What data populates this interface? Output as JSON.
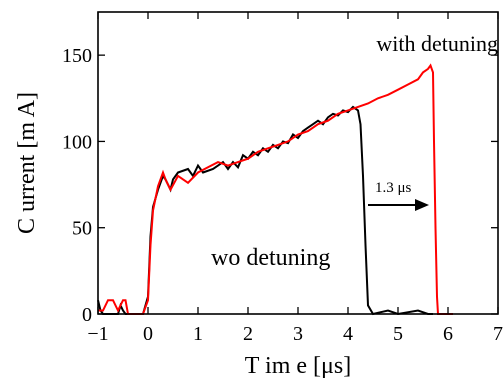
{
  "chart_data": {
    "type": "line",
    "xlabel": "T im e [μs]",
    "ylabel": "C urrent [m A]",
    "xlim": [
      -1,
      7
    ],
    "ylim": [
      0,
      175
    ],
    "x_ticks": [
      -1,
      0,
      1,
      2,
      3,
      4,
      5,
      6,
      7
    ],
    "y_ticks": [
      0,
      50,
      100,
      150
    ],
    "grid": false,
    "series": [
      {
        "name": "wo detuning",
        "color": "#000000",
        "x": [
          -1.0,
          -0.95,
          -0.9,
          -0.85,
          -0.8,
          -0.7,
          -0.6,
          -0.55,
          -0.5,
          -0.45,
          -0.4,
          -0.3,
          -0.2,
          -0.1,
          0.0,
          0.05,
          0.1,
          0.2,
          0.3,
          0.35,
          0.45,
          0.5,
          0.6,
          0.8,
          0.9,
          1.0,
          1.1,
          1.3,
          1.4,
          1.5,
          1.6,
          1.7,
          1.8,
          1.9,
          2.0,
          2.1,
          2.2,
          2.3,
          2.4,
          2.5,
          2.6,
          2.7,
          2.8,
          2.9,
          3.0,
          3.1,
          3.2,
          3.3,
          3.4,
          3.5,
          3.6,
          3.7,
          3.8,
          3.9,
          4.0,
          4.1,
          4.2,
          4.25,
          4.3,
          4.35,
          4.4,
          4.5,
          4.8,
          5.0,
          5.4,
          5.6,
          5.7
        ],
        "y": [
          8,
          2,
          0,
          0,
          0,
          0,
          0,
          5,
          2,
          0,
          0,
          0,
          0,
          0,
          10,
          45,
          62,
          72,
          80,
          78,
          72,
          78,
          82,
          84,
          80,
          86,
          82,
          84,
          86,
          88,
          84,
          88,
          85,
          92,
          90,
          94,
          92,
          96,
          94,
          98,
          96,
          100,
          99,
          104,
          102,
          106,
          108,
          110,
          112,
          110,
          114,
          116,
          115,
          118,
          117,
          120,
          118,
          110,
          80,
          40,
          5,
          0,
          2,
          0,
          2,
          0,
          0
        ]
      },
      {
        "name": "with detuning",
        "color": "#ff0000",
        "x": [
          -1.0,
          -0.9,
          -0.8,
          -0.7,
          -0.6,
          -0.5,
          -0.45,
          -0.4,
          -0.3,
          -0.2,
          -0.1,
          0.0,
          0.05,
          0.1,
          0.2,
          0.3,
          0.35,
          0.45,
          0.6,
          0.8,
          1.0,
          1.2,
          1.4,
          1.6,
          1.8,
          2.0,
          2.2,
          2.4,
          2.6,
          2.8,
          3.0,
          3.2,
          3.4,
          3.6,
          3.8,
          4.0,
          4.2,
          4.4,
          4.6,
          4.8,
          5.0,
          5.2,
          5.4,
          5.5,
          5.6,
          5.65,
          5.7,
          5.72,
          5.75,
          5.78,
          5.8,
          5.85,
          5.9,
          6.0,
          6.1
        ],
        "y": [
          2,
          2,
          8,
          8,
          2,
          8,
          8,
          0,
          0,
          0,
          0,
          8,
          40,
          60,
          74,
          82,
          78,
          72,
          80,
          76,
          82,
          85,
          88,
          86,
          88,
          90,
          94,
          96,
          98,
          100,
          104,
          106,
          110,
          112,
          116,
          118,
          120,
          122,
          125,
          127,
          130,
          133,
          136,
          140,
          142,
          144,
          140,
          100,
          50,
          10,
          0,
          0,
          0,
          0,
          0
        ]
      }
    ],
    "annotations": {
      "with_detuning_label": "with detuning",
      "wo_detuning_label": "wo detuning",
      "arrow_label": "1.3 μs"
    }
  }
}
